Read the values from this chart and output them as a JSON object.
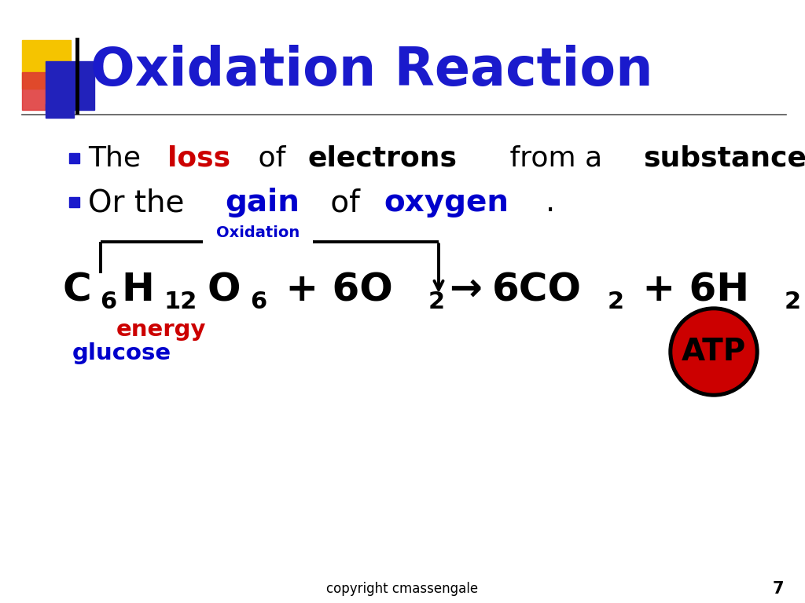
{
  "title": "Oxidation Reaction",
  "title_color": "#1a1acc",
  "title_fontsize": 48,
  "bg_color": "#ffffff",
  "bullet_color": "#1a1acc",
  "line1_parts": [
    {
      "text": "The ",
      "color": "#000000",
      "bold": false
    },
    {
      "text": "loss",
      "color": "#cc0000",
      "bold": true
    },
    {
      "text": " of ",
      "color": "#000000",
      "bold": false
    },
    {
      "text": "electrons",
      "color": "#000000",
      "bold": true
    },
    {
      "text": " from a ",
      "color": "#000000",
      "bold": false
    },
    {
      "text": "substance",
      "color": "#000000",
      "bold": true
    },
    {
      "text": ".",
      "color": "#000000",
      "bold": false
    }
  ],
  "line2_parts": [
    {
      "text": "Or the ",
      "color": "#000000",
      "bold": false
    },
    {
      "text": "gain",
      "color": "#0000cc",
      "bold": true
    },
    {
      "text": " of ",
      "color": "#000000",
      "bold": false
    },
    {
      "text": "oxygen",
      "color": "#0000cc",
      "bold": true
    },
    {
      "text": ".",
      "color": "#000000",
      "bold": false
    }
  ],
  "oxidation_label": "Oxidation",
  "oxidation_label_color": "#0000cc",
  "equation_fontsize": 36,
  "footer": "copyright cmassengale",
  "page_number": "7",
  "atp_text": "ATP",
  "atp_bg": "#cc0000",
  "atp_text_color": "#000000",
  "energy_text": "energy",
  "energy_color": "#cc0000",
  "glucose_text": "glucose",
  "glucose_color": "#0000cc",
  "line1_fontsize": 26,
  "line2_fontsize": 28
}
